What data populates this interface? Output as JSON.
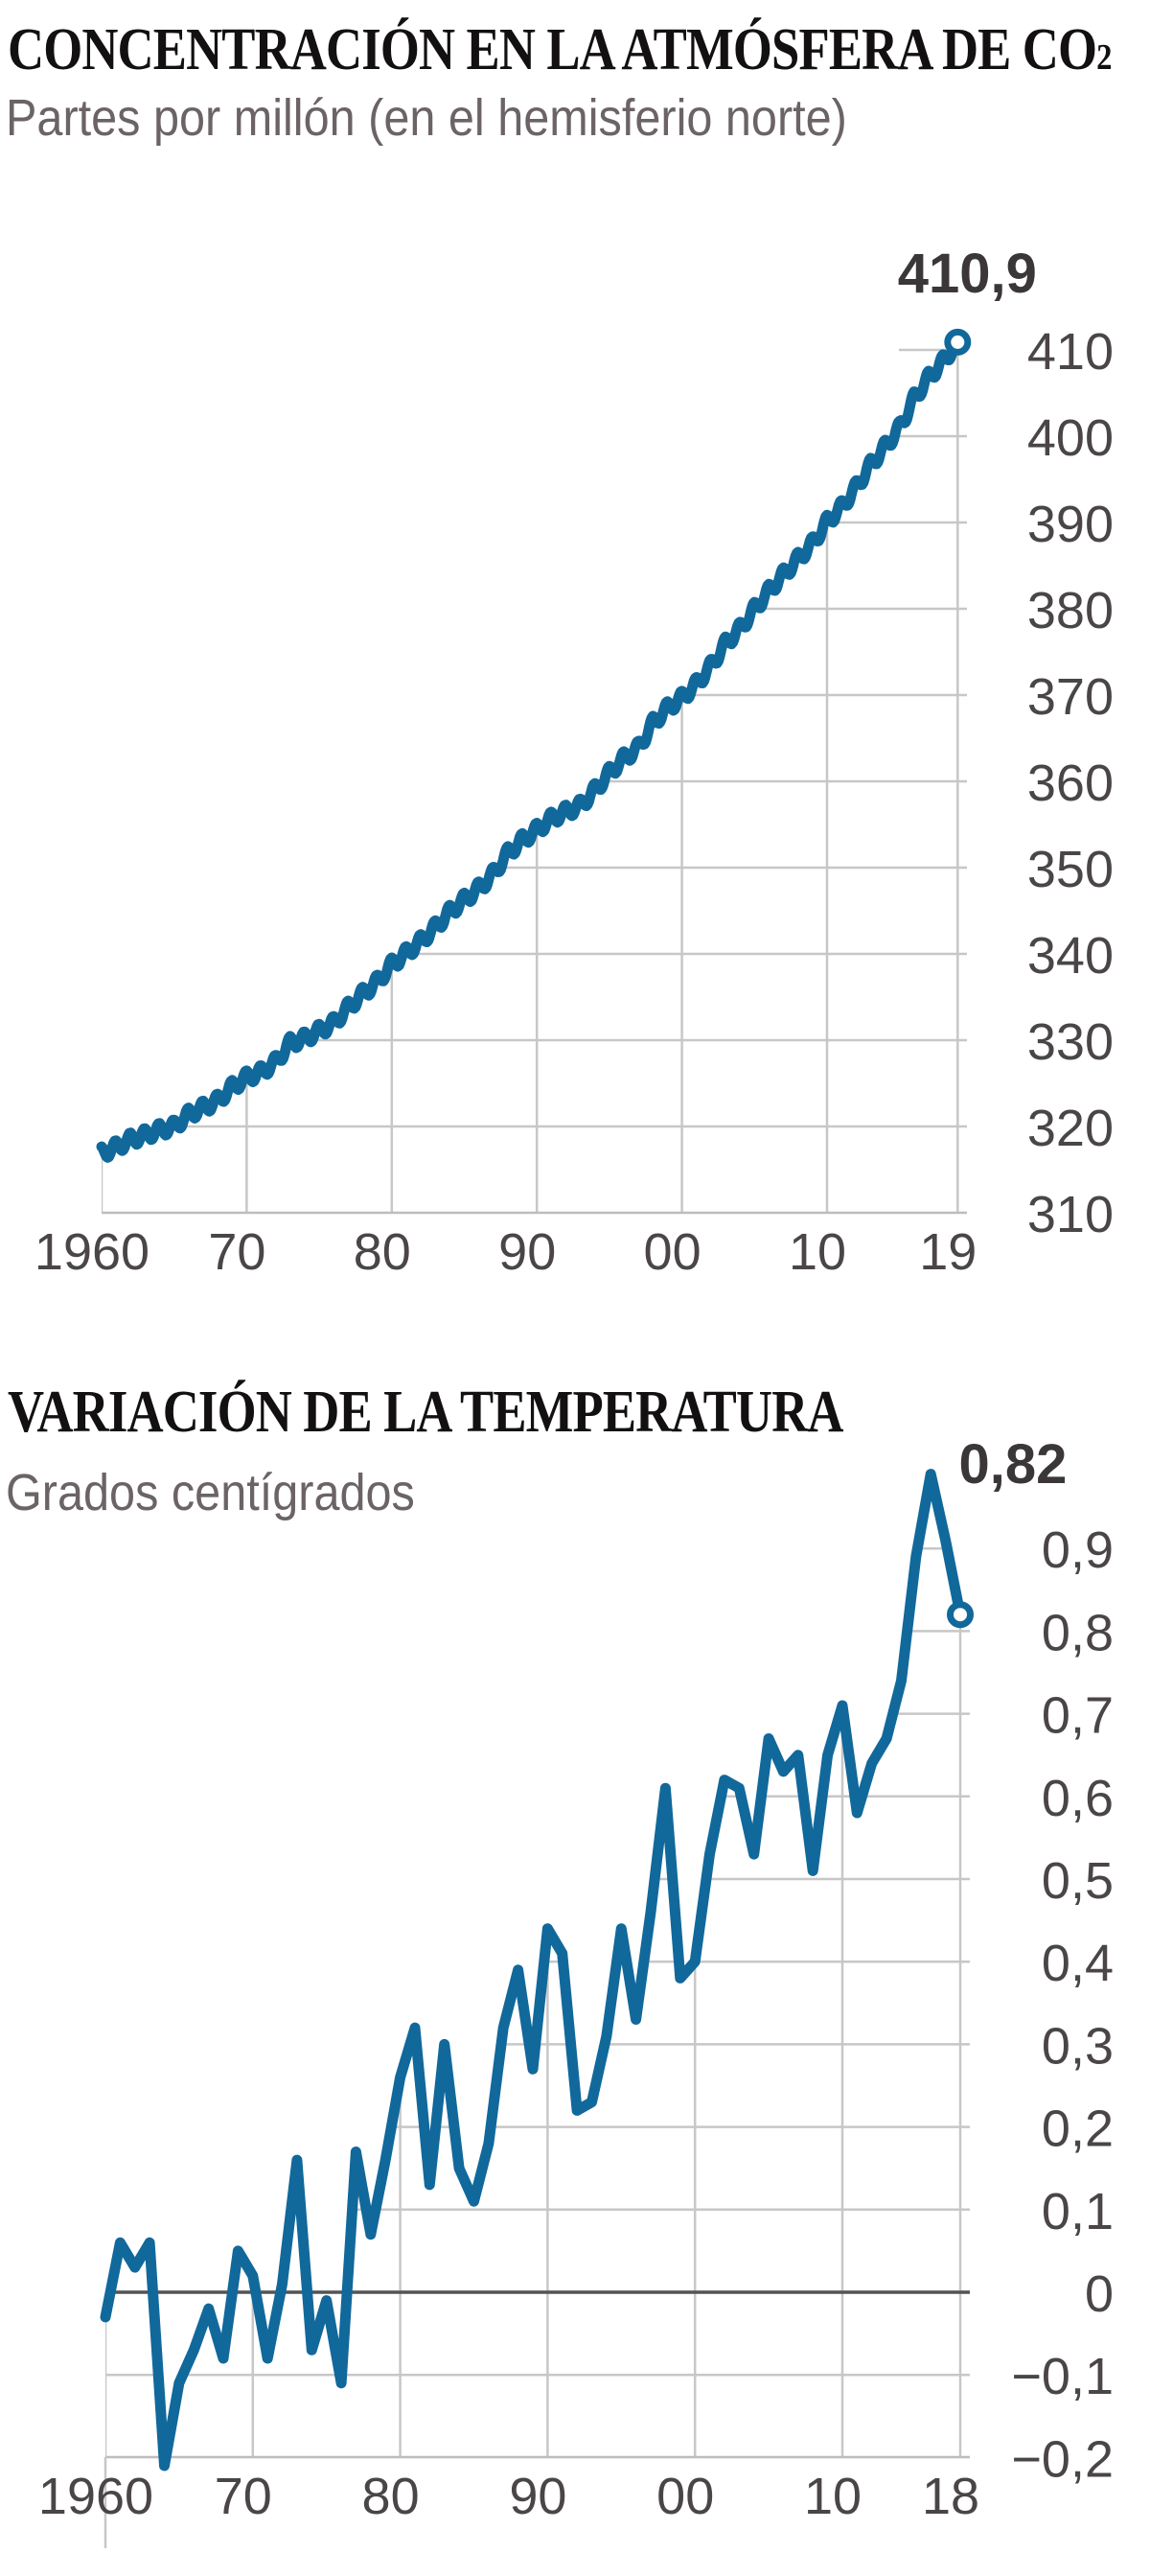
{
  "colors": {
    "line": "#11689b",
    "grid": "#c8c7c7",
    "zero_line": "#545454",
    "axis_line": "#bdbdbd",
    "tick_label": "#4a4547",
    "title": "#131012",
    "subtitle": "#6b6366",
    "end_value_label": "#3b3739",
    "marker_fill": "#ffffff",
    "background": "#ffffff"
  },
  "chart_data": [
    {
      "type": "line",
      "title": "CONCENTRACIÓN EN LA ATMÓSFERA DE CO",
      "title_subscript": "2",
      "subtitle": "Partes por millón (en el hemisferio norte)",
      "series_name": "Concentración de CO2",
      "unit": "partes por millón (ppm)",
      "legend": "none",
      "grid": "light gray, visible only below/right of the data line",
      "xlim": [
        1960,
        2019
      ],
      "ylim": [
        310,
        411
      ],
      "end_label": "410,9",
      "end_value": 410.9,
      "marker": "open circle at last point",
      "years": [
        1960,
        1961,
        1962,
        1963,
        1964,
        1965,
        1966,
        1967,
        1968,
        1969,
        1970,
        1971,
        1972,
        1973,
        1974,
        1975,
        1976,
        1977,
        1978,
        1979,
        1980,
        1981,
        1982,
        1983,
        1984,
        1985,
        1986,
        1987,
        1988,
        1989,
        1990,
        1991,
        1992,
        1993,
        1994,
        1995,
        1996,
        1997,
        1998,
        1999,
        2000,
        2001,
        2002,
        2003,
        2004,
        2005,
        2006,
        2007,
        2008,
        2009,
        2010,
        2011,
        2012,
        2013,
        2014,
        2015,
        2016,
        2017,
        2018,
        2019
      ],
      "values": [
        316.9,
        317.6,
        318.5,
        319.0,
        319.6,
        320.0,
        321.4,
        322.2,
        323.0,
        324.6,
        325.7,
        326.3,
        327.5,
        329.7,
        330.2,
        331.1,
        332.0,
        333.8,
        335.4,
        336.8,
        338.8,
        340.1,
        341.5,
        343.1,
        344.9,
        346.3,
        347.6,
        349.3,
        351.7,
        353.2,
        354.4,
        355.7,
        356.5,
        357.2,
        359.0,
        361.0,
        362.7,
        363.9,
        366.8,
        368.5,
        369.7,
        371.3,
        373.4,
        376.0,
        377.7,
        380.0,
        382.1,
        384.0,
        385.8,
        387.6,
        390.1,
        391.8,
        394.1,
        396.7,
        398.8,
        401.0,
        404.4,
        406.8,
        408.7,
        410.9
      ],
      "y_ticks": [
        {
          "v": 410,
          "label": "410"
        },
        {
          "v": 400,
          "label": "400"
        },
        {
          "v": 390,
          "label": "390"
        },
        {
          "v": 380,
          "label": "380"
        },
        {
          "v": 370,
          "label": "370"
        },
        {
          "v": 360,
          "label": "360"
        },
        {
          "v": 350,
          "label": "350"
        },
        {
          "v": 340,
          "label": "340"
        },
        {
          "v": 330,
          "label": "330"
        },
        {
          "v": 320,
          "label": "320"
        },
        {
          "v": 310,
          "label": "310"
        }
      ],
      "x_ticks": [
        {
          "year": 1960,
          "label": "1960"
        },
        {
          "year": 1970,
          "label": "70"
        },
        {
          "year": 1980,
          "label": "80"
        },
        {
          "year": 1990,
          "label": "90"
        },
        {
          "year": 2000,
          "label": "00"
        },
        {
          "year": 2010,
          "label": "10"
        },
        {
          "year": 2019,
          "label": "19"
        }
      ]
    },
    {
      "type": "line",
      "title": "VARIACIÓN DE LA TEMPERATURA",
      "title_subscript": "",
      "subtitle": "Grados centígrados",
      "series_name": "Variación de la temperatura",
      "unit": "grados centígrados (°C)",
      "legend": "none",
      "grid": "light gray behind line, clipped below/right of the data line; dark zero line",
      "xlim": [
        1960,
        2018
      ],
      "ylim": [
        -0.2,
        1.0
      ],
      "end_label": "0,82",
      "end_value": 0.82,
      "marker": "open circle at last point",
      "years": [
        1960,
        1961,
        1962,
        1963,
        1964,
        1965,
        1966,
        1967,
        1968,
        1969,
        1970,
        1971,
        1972,
        1973,
        1974,
        1975,
        1976,
        1977,
        1978,
        1979,
        1980,
        1981,
        1982,
        1983,
        1984,
        1985,
        1986,
        1987,
        1988,
        1989,
        1990,
        1991,
        1992,
        1993,
        1994,
        1995,
        1996,
        1997,
        1998,
        1999,
        2000,
        2001,
        2002,
        2003,
        2004,
        2005,
        2006,
        2007,
        2008,
        2009,
        2010,
        2011,
        2012,
        2013,
        2014,
        2015,
        2016,
        2017,
        2018
      ],
      "values": [
        -0.03,
        0.06,
        0.03,
        0.06,
        -0.21,
        -0.11,
        -0.07,
        -0.02,
        -0.08,
        0.05,
        0.02,
        -0.08,
        0.01,
        0.16,
        -0.07,
        -0.01,
        -0.11,
        0.17,
        0.07,
        0.16,
        0.26,
        0.32,
        0.13,
        0.3,
        0.15,
        0.11,
        0.18,
        0.32,
        0.39,
        0.27,
        0.44,
        0.41,
        0.22,
        0.23,
        0.31,
        0.44,
        0.33,
        0.46,
        0.61,
        0.38,
        0.4,
        0.53,
        0.62,
        0.61,
        0.53,
        0.67,
        0.63,
        0.65,
        0.51,
        0.65,
        0.71,
        0.58,
        0.64,
        0.67,
        0.74,
        0.89,
        0.99,
        0.91,
        0.82
      ],
      "y_ticks": [
        {
          "v": 0.9,
          "label": "0,9"
        },
        {
          "v": 0.8,
          "label": "0,8"
        },
        {
          "v": 0.7,
          "label": "0,7"
        },
        {
          "v": 0.6,
          "label": "0,6"
        },
        {
          "v": 0.5,
          "label": "0,5"
        },
        {
          "v": 0.4,
          "label": "0,4"
        },
        {
          "v": 0.3,
          "label": "0,3"
        },
        {
          "v": 0.2,
          "label": "0,2"
        },
        {
          "v": 0.1,
          "label": "0,1"
        },
        {
          "v": 0,
          "label": "0"
        },
        {
          "v": -0.1,
          "label": "−0,1"
        },
        {
          "v": -0.2,
          "label": "−0,2"
        }
      ],
      "x_ticks": [
        {
          "year": 1960,
          "label": "1960"
        },
        {
          "year": 1970,
          "label": "70"
        },
        {
          "year": 1980,
          "label": "80"
        },
        {
          "year": 1990,
          "label": "90"
        },
        {
          "year": 2000,
          "label": "00"
        },
        {
          "year": 2010,
          "label": "10"
        },
        {
          "year": 2018,
          "label": "18"
        }
      ]
    }
  ]
}
